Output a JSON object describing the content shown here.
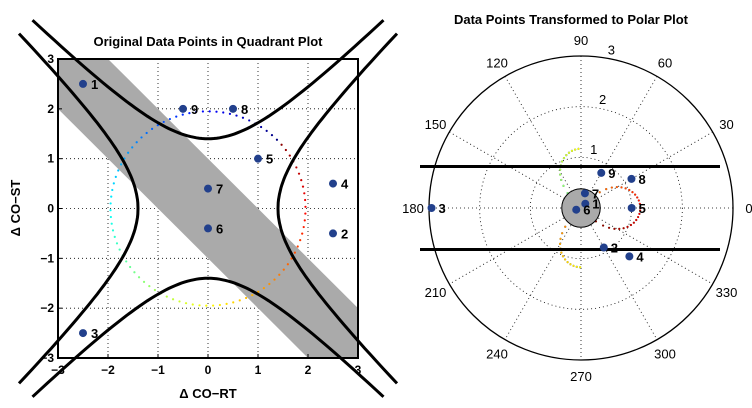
{
  "chart_data": [
    {
      "type": "scatter",
      "title": "Original Data Points in Quadrant Plot",
      "xlabel": "Δ CO−RT",
      "ylabel": "Δ CO−ST",
      "xlim": [
        -3,
        3
      ],
      "ylim": [
        -3,
        3
      ],
      "x_ticks": [
        "−3",
        "−2",
        "−1",
        "0",
        "1",
        "2",
        "3"
      ],
      "y_ticks": [
        "3",
        "2",
        "1",
        "0",
        "−1",
        "−2",
        "−3"
      ],
      "grid": "dotted",
      "point_color": "#22408c",
      "band_color": "#aaaaaa",
      "points": [
        {
          "label": "1",
          "x": -2.5,
          "y": 2.5
        },
        {
          "label": "2",
          "x": 2.5,
          "y": -0.5
        },
        {
          "label": "3",
          "x": -2.5,
          "y": -2.5
        },
        {
          "label": "4",
          "x": 2.5,
          "y": 0.5
        },
        {
          "label": "5",
          "x": 1.0,
          "y": 1.0
        },
        {
          "label": "6",
          "x": 0.0,
          "y": -0.4
        },
        {
          "label": "7",
          "x": 0.0,
          "y": 0.4
        },
        {
          "label": "8",
          "x": 0.5,
          "y": 2.0
        },
        {
          "label": "9",
          "x": -0.5,
          "y": 2.0
        }
      ]
    },
    {
      "type": "scatter",
      "title": "Data Points Transformed to Polar Plot",
      "coordinate_system": "polar",
      "r_ticks": [
        "1",
        "2",
        "3"
      ],
      "angle_labels": [
        "0",
        "30",
        "60",
        "90",
        "120",
        "150",
        "180",
        "210",
        "240",
        "270",
        "300",
        "330"
      ],
      "rmax": 3,
      "grid": "dotted",
      "point_color": "#22408c",
      "points": [
        {
          "label": "1",
          "angle_deg": 45,
          "r": 0.12
        },
        {
          "label": "2",
          "angle_deg": 300,
          "r": 0.9
        },
        {
          "label": "3",
          "angle_deg": 180,
          "r": 2.95
        },
        {
          "label": "4",
          "angle_deg": 315,
          "r": 1.35
        },
        {
          "label": "5",
          "angle_deg": 0,
          "r": 1.0
        },
        {
          "label": "6",
          "angle_deg": 200,
          "r": 0.1
        },
        {
          "label": "7",
          "angle_deg": 75,
          "r": 0.3
        },
        {
          "label": "8",
          "angle_deg": 30,
          "r": 1.15
        },
        {
          "label": "9",
          "angle_deg": 60,
          "r": 0.8
        }
      ]
    }
  ]
}
